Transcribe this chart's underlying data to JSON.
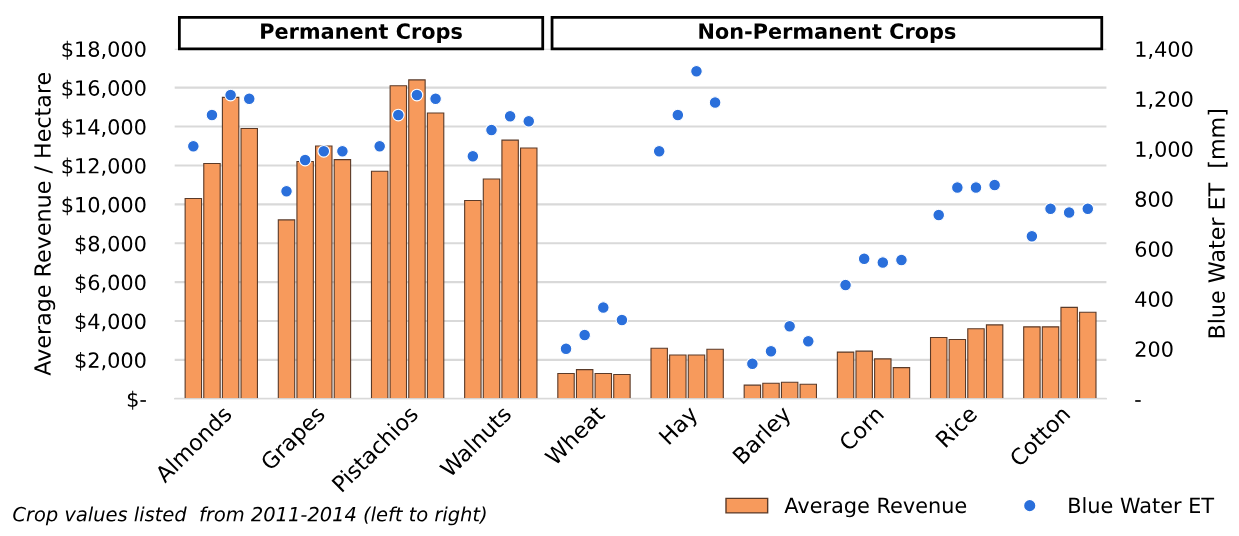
{
  "chart_data": {
    "type": "bar",
    "categories": [
      "Almonds",
      "Grapes",
      "Pistachios",
      "Walnuts",
      "Wheat",
      "Hay",
      "Barley",
      "Corn",
      "Rice",
      "Cotton"
    ],
    "series": [
      {
        "name": "Average Revenue",
        "color": "#f79a5c",
        "values": [
          10300,
          9200,
          11700,
          10200,
          1300,
          2600,
          700,
          2400,
          3150,
          3700
        ]
      },
      {
        "color": "#f79a5c",
        "values": [
          12100,
          12200,
          16100,
          11300,
          1500,
          2250,
          800,
          2450,
          3050,
          3700
        ]
      },
      {
        "color": "#f79a5c",
        "values": [
          15500,
          13000,
          16400,
          13300,
          1300,
          2250,
          850,
          2050,
          3600,
          4700
        ]
      },
      {
        "color": "#f79a5c",
        "values": [
          13900,
          12300,
          14700,
          12900,
          1250,
          2550,
          750,
          1600,
          3800,
          4450
        ]
      },
      {
        "name": "Blue Water ET",
        "type": "scatter",
        "axis": "y2",
        "color": "#2a6fdb",
        "values": [
          1010,
          830,
          1010,
          970,
          200,
          990,
          140,
          455,
          735,
          650
        ]
      },
      {
        "type": "scatter",
        "axis": "y2",
        "color": "#2a6fdb",
        "values": [
          1135,
          955,
          1135,
          1075,
          255,
          1135,
          190,
          560,
          845,
          760
        ]
      },
      {
        "type": "scatter",
        "axis": "y2",
        "color": "#2a6fdb",
        "values": [
          1215,
          990,
          1215,
          1130,
          365,
          1310,
          290,
          545,
          845,
          745
        ]
      },
      {
        "type": "scatter",
        "axis": "y2",
        "color": "#2a6fdb",
        "values": [
          1200,
          990,
          1200,
          1110,
          315,
          1185,
          230,
          555,
          855,
          760
        ]
      }
    ],
    "ylabel": "Average Revenue / Hectare",
    "y2label": "Blue Water ET  [mm]",
    "ylim": [
      0,
      18000
    ],
    "yticks": [
      {
        "value": 0,
        "label": "$-"
      },
      {
        "value": 2000,
        "label": "$2,000"
      },
      {
        "value": 4000,
        "label": "$4,000"
      },
      {
        "value": 6000,
        "label": "$6,000"
      },
      {
        "value": 8000,
        "label": "$8,000"
      },
      {
        "value": 10000,
        "label": "$10,000"
      },
      {
        "value": 12000,
        "label": "$12,000"
      },
      {
        "value": 14000,
        "label": "$14,000"
      },
      {
        "value": 16000,
        "label": "$16,000"
      },
      {
        "value": 18000,
        "label": "$18,000"
      }
    ],
    "y2lim": [
      0,
      1400
    ],
    "y2ticks": [
      {
        "value": 0,
        "label": "-"
      },
      {
        "value": 200,
        "label": "200"
      },
      {
        "value": 400,
        "label": "400"
      },
      {
        "value": 600,
        "label": "600"
      },
      {
        "value": 800,
        "label": "800"
      },
      {
        "value": 1000,
        "label": "1,000"
      },
      {
        "value": 1200,
        "label": "1,200"
      },
      {
        "value": 1400,
        "label": "1,400"
      }
    ],
    "annotations": [
      "Permanent Crops",
      "Non-Permanent Crops",
      "Crop values listed  from 2011-2014 (left to right)"
    ],
    "grid": "y",
    "legend": "bottom right",
    "marker": "circle"
  }
}
